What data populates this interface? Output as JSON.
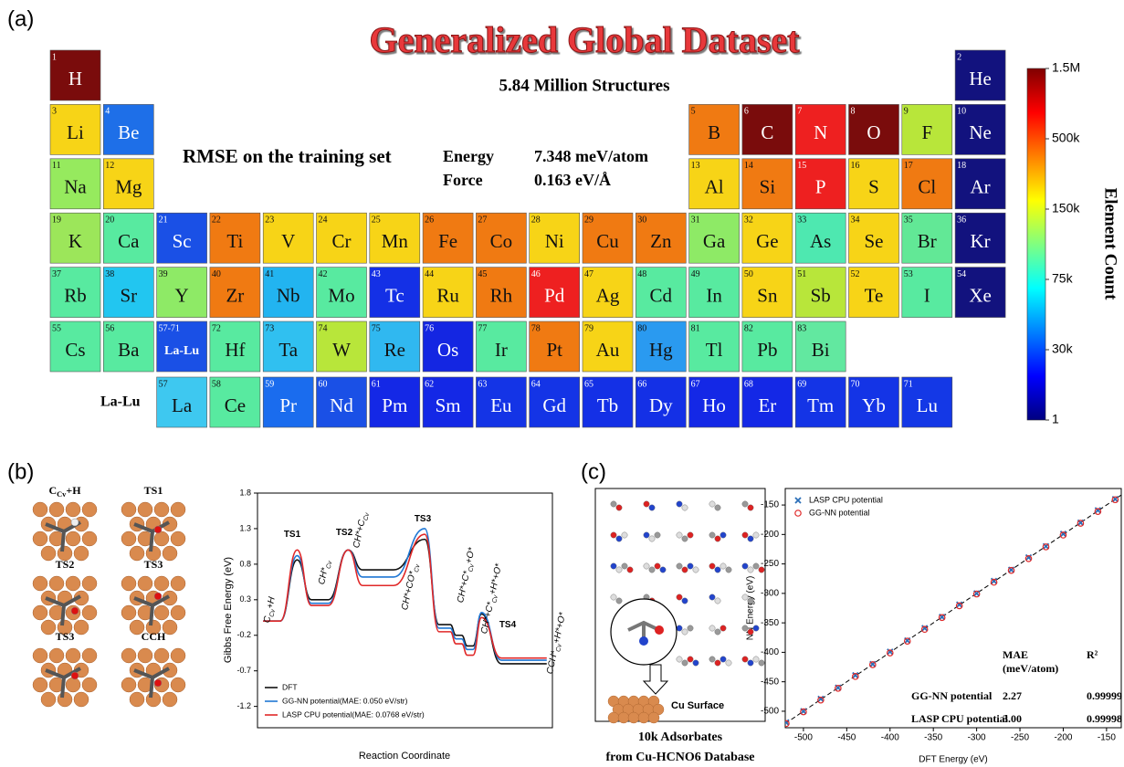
{
  "panel_labels": [
    "(a)",
    "(b)",
    "(c)"
  ],
  "periodic_table": {
    "title": "Generalized Global Dataset",
    "subtitle": "5.84 Million Structures",
    "rmse_label": "RMSE on the training set",
    "energy_label": "Energy",
    "energy_value": "7.348 meV/atom",
    "force_label": "Force",
    "force_value": "0.163 eV/Å",
    "lanthanide_row_label": "La-Lu",
    "lanthanide_cell": {
      "number": "57-71",
      "symbol": "La-Lu",
      "color": "#1a50e6"
    },
    "elements": [
      {
        "number": 1,
        "symbol": "H",
        "color": "#7a0c0c"
      },
      {
        "number": 2,
        "symbol": "He",
        "color": "#12127e"
      },
      {
        "number": 3,
        "symbol": "Li",
        "color": "#f7d417"
      },
      {
        "number": 4,
        "symbol": "Be",
        "color": "#1e6fe8"
      },
      {
        "number": 5,
        "symbol": "B",
        "color": "#f07a12"
      },
      {
        "number": 6,
        "symbol": "C",
        "color": "#7a0c0c"
      },
      {
        "number": 7,
        "symbol": "N",
        "color": "#ee2020"
      },
      {
        "number": 8,
        "symbol": "O",
        "color": "#7a0c0c"
      },
      {
        "number": 9,
        "symbol": "F",
        "color": "#b8e63a"
      },
      {
        "number": 10,
        "symbol": "Ne",
        "color": "#12127e"
      },
      {
        "number": 11,
        "symbol": "Na",
        "color": "#96ea5e"
      },
      {
        "number": 12,
        "symbol": "Mg",
        "color": "#f7d417"
      },
      {
        "number": 13,
        "symbol": "Al",
        "color": "#f7d417"
      },
      {
        "number": 14,
        "symbol": "Si",
        "color": "#f07a12"
      },
      {
        "number": 15,
        "symbol": "P",
        "color": "#ee2020"
      },
      {
        "number": 16,
        "symbol": "S",
        "color": "#f7d417"
      },
      {
        "number": 17,
        "symbol": "Cl",
        "color": "#f07a12"
      },
      {
        "number": 18,
        "symbol": "Ar",
        "color": "#12127e"
      },
      {
        "number": 19,
        "symbol": "K",
        "color": "#9ce65a"
      },
      {
        "number": 20,
        "symbol": "Ca",
        "color": "#58eaa0"
      },
      {
        "number": 21,
        "symbol": "Sc",
        "color": "#1a50e6"
      },
      {
        "number": 22,
        "symbol": "Ti",
        "color": "#f07a12"
      },
      {
        "number": 23,
        "symbol": "V",
        "color": "#f7d417"
      },
      {
        "number": 24,
        "symbol": "Cr",
        "color": "#f7d417"
      },
      {
        "number": 25,
        "symbol": "Mn",
        "color": "#f7d417"
      },
      {
        "number": 26,
        "symbol": "Fe",
        "color": "#f07a12"
      },
      {
        "number": 27,
        "symbol": "Co",
        "color": "#f07a12"
      },
      {
        "number": 28,
        "symbol": "Ni",
        "color": "#f7d417"
      },
      {
        "number": 29,
        "symbol": "Cu",
        "color": "#f07a12"
      },
      {
        "number": 30,
        "symbol": "Zn",
        "color": "#f07a12"
      },
      {
        "number": 31,
        "symbol": "Ga",
        "color": "#8eea66"
      },
      {
        "number": 32,
        "symbol": "Ge",
        "color": "#f7d417"
      },
      {
        "number": 33,
        "symbol": "As",
        "color": "#4ee8b0"
      },
      {
        "number": 34,
        "symbol": "Se",
        "color": "#f7d417"
      },
      {
        "number": 35,
        "symbol": "Br",
        "color": "#62e896"
      },
      {
        "number": 36,
        "symbol": "Kr",
        "color": "#12127e"
      },
      {
        "number": 37,
        "symbol": "Rb",
        "color": "#58eaa0"
      },
      {
        "number": 38,
        "symbol": "Sr",
        "color": "#22c6f0"
      },
      {
        "number": 39,
        "symbol": "Y",
        "color": "#8eea66"
      },
      {
        "number": 40,
        "symbol": "Zr",
        "color": "#f07a12"
      },
      {
        "number": 41,
        "symbol": "Nb",
        "color": "#22b4f0"
      },
      {
        "number": 42,
        "symbol": "Mo",
        "color": "#58eaa0"
      },
      {
        "number": 43,
        "symbol": "Tc",
        "color": "#1430e6"
      },
      {
        "number": 44,
        "symbol": "Ru",
        "color": "#f7d417"
      },
      {
        "number": 45,
        "symbol": "Rh",
        "color": "#f07a12"
      },
      {
        "number": 46,
        "symbol": "Pd",
        "color": "#ee2020"
      },
      {
        "number": 47,
        "symbol": "Ag",
        "color": "#f7d417"
      },
      {
        "number": 48,
        "symbol": "Cd",
        "color": "#58eaa0"
      },
      {
        "number": 49,
        "symbol": "In",
        "color": "#58eaa0"
      },
      {
        "number": 50,
        "symbol": "Sn",
        "color": "#f7d417"
      },
      {
        "number": 51,
        "symbol": "Sb",
        "color": "#b8e63a"
      },
      {
        "number": 52,
        "symbol": "Te",
        "color": "#f7d417"
      },
      {
        "number": 53,
        "symbol": "I",
        "color": "#58eaa0"
      },
      {
        "number": 54,
        "symbol": "Xe",
        "color": "#12127e"
      },
      {
        "number": 55,
        "symbol": "Cs",
        "color": "#58eaa0"
      },
      {
        "number": 56,
        "symbol": "Ba",
        "color": "#58eaa0"
      },
      {
        "number": 57,
        "symbol": "La",
        "color": "#3ec8f0"
      },
      {
        "number": 58,
        "symbol": "Ce",
        "color": "#58eaa0"
      },
      {
        "number": 59,
        "symbol": "Pr",
        "color": "#1a6cee"
      },
      {
        "number": 60,
        "symbol": "Nd",
        "color": "#1a50e6"
      },
      {
        "number": 61,
        "symbol": "Pm",
        "color": "#1428e6"
      },
      {
        "number": 62,
        "symbol": "Sm",
        "color": "#1428e6"
      },
      {
        "number": 63,
        "symbol": "Eu",
        "color": "#1434e6"
      },
      {
        "number": 64,
        "symbol": "Gd",
        "color": "#1434e6"
      },
      {
        "number": 65,
        "symbol": "Tb",
        "color": "#1430e6"
      },
      {
        "number": 66,
        "symbol": "Dy",
        "color": "#1430e6"
      },
      {
        "number": 67,
        "symbol": "Ho",
        "color": "#1428e6"
      },
      {
        "number": 68,
        "symbol": "Er",
        "color": "#1428e6"
      },
      {
        "number": 69,
        "symbol": "Tm",
        "color": "#1434e6"
      },
      {
        "number": 70,
        "symbol": "Yb",
        "color": "#1434e6"
      },
      {
        "number": 71,
        "symbol": "Lu",
        "color": "#1438e6"
      },
      {
        "number": 72,
        "symbol": "Hf",
        "color": "#58eaa0"
      },
      {
        "number": 73,
        "symbol": "Ta",
        "color": "#30c0f0"
      },
      {
        "number": 74,
        "symbol": "W",
        "color": "#b8e63a"
      },
      {
        "number": 75,
        "symbol": "Re",
        "color": "#30b8f0"
      },
      {
        "number": 76,
        "symbol": "Os",
        "color": "#1426e2"
      },
      {
        "number": 77,
        "symbol": "Ir",
        "color": "#58eaa0"
      },
      {
        "number": 78,
        "symbol": "Pt",
        "color": "#f07a12"
      },
      {
        "number": 79,
        "symbol": "Au",
        "color": "#f7d417"
      },
      {
        "number": 80,
        "symbol": "Hg",
        "color": "#2a9af0"
      },
      {
        "number": 81,
        "symbol": "Tl",
        "color": "#58eaa0"
      },
      {
        "number": 82,
        "symbol": "Pb",
        "color": "#58eaa0"
      },
      {
        "number": 83,
        "symbol": "Bi",
        "color": "#62e8a0"
      }
    ],
    "colorbar": {
      "label": "Element Count",
      "colors": [
        "#800000",
        "#ff0000",
        "#ff8000",
        "#ffff00",
        "#80ff80",
        "#00ffff",
        "#0080ff",
        "#0000ff",
        "#000080"
      ],
      "ticks": [
        {
          "value": 1500000,
          "label": "1.5M"
        },
        {
          "value": 500000,
          "label": "500k"
        },
        {
          "value": 150000,
          "label": "150k"
        },
        {
          "value": 75000,
          "label": "75k"
        },
        {
          "value": 30000,
          "label": "30k"
        },
        1
      ]
    }
  },
  "structures": {
    "labels": [
      [
        "C",
        "Cv",
        "+H"
      ],
      [
        "TS1"
      ],
      [
        "TS2"
      ],
      [
        "TS3"
      ],
      [
        "TS3"
      ],
      [
        "CCH"
      ]
    ]
  },
  "chart_data": [
    {
      "type": "line",
      "xlabel": "Reaction Coordinate",
      "ylabel": "Gibbs Free Energy (eV)",
      "x": [
        0,
        6,
        12,
        17,
        23,
        30,
        35,
        46,
        57,
        62,
        66,
        68,
        70,
        72,
        74,
        77,
        84,
        100
      ],
      "xlim": [
        -2,
        102
      ],
      "ylim": [
        -1.5,
        1.8
      ],
      "yticks": [
        -1.2,
        -0.7,
        -0.2,
        0.3,
        0.8,
        1.3,
        1.8
      ],
      "legend": "lower left",
      "annotations": [
        [
          "TS1"
        ],
        [
          "TS2"
        ],
        [
          "TS3"
        ],
        [
          "TS4"
        ],
        [
          "C",
          "Cv",
          "+H"
        ],
        [
          "CH*",
          "Cv"
        ],
        [
          "CH*+C",
          "Cv"
        ],
        [
          "CH*+CO*",
          "Cv"
        ],
        [
          "CH*+C*",
          "Cv",
          "+O*"
        ],
        [
          "CH*+C*",
          "Cv",
          "+H*+O*"
        ],
        [
          "CCH*",
          "Cv",
          "+H*+O*"
        ]
      ],
      "series": [
        {
          "name": "DFT",
          "color": "#111111",
          "values": [
            0,
            0,
            0.86,
            0.3,
            0.3,
            1.0,
            0.72,
            0.72,
            1.15,
            -0.05,
            -0.05,
            -0.2,
            -0.2,
            -0.35,
            -0.35,
            0.1,
            -0.6,
            -0.6
          ]
        },
        {
          "name": "GG-NN potential(MAE: 0.050 eV/str)",
          "color": "#1f77d4",
          "values": [
            0,
            0,
            0.92,
            0.25,
            0.25,
            1.0,
            0.62,
            0.62,
            1.3,
            -0.1,
            -0.1,
            -0.25,
            -0.25,
            -0.4,
            -0.4,
            0.12,
            -0.55,
            -0.55
          ]
        },
        {
          "name": "LASP CPU potential(MAE: 0.0768 eV/str)",
          "color": "#e02828",
          "values": [
            0,
            0,
            1.0,
            0.22,
            0.22,
            1.0,
            0.5,
            0.5,
            1.22,
            -0.15,
            -0.15,
            -0.32,
            -0.32,
            -0.48,
            -0.48,
            0.05,
            -0.52,
            -0.52
          ]
        }
      ]
    },
    {
      "type": "scatter",
      "xlabel": "DFT Energy (eV)",
      "ylabel": "NN Energy (eV)",
      "xlim": [
        -521,
        -133
      ],
      "ylim": [
        -528,
        -122
      ],
      "xticks": [
        -500,
        -450,
        -400,
        -350,
        -300,
        -250,
        -200,
        -150
      ],
      "yticks": [
        -500,
        -450,
        -400,
        -350,
        -300,
        -250,
        -200,
        -150
      ],
      "legend": "upper left",
      "series": [
        {
          "name": "LASP CPU potential",
          "color": "#2c6fb8",
          "marker": "x",
          "x": [
            -520,
            -500,
            -480,
            -460,
            -440,
            -420,
            -400,
            -380,
            -360,
            -340,
            -320,
            -300,
            -280,
            -260,
            -240,
            -220,
            -200,
            -180,
            -160,
            -140
          ],
          "values": [
            -519,
            -500,
            -479,
            -460,
            -439,
            -420,
            -399,
            -380,
            -359,
            -340,
            -319,
            -300,
            -279,
            -260,
            -239,
            -220,
            -199,
            -180,
            -159,
            -140
          ]
        },
        {
          "name": "GG-NN potential",
          "color": "#e02828",
          "marker": "circle",
          "x": [
            -520,
            -500,
            -480,
            -460,
            -440,
            -420,
            -400,
            -380,
            -360,
            -340,
            -320,
            -300,
            -280,
            -260,
            -240,
            -220,
            -200,
            -180,
            -160,
            -140
          ],
          "values": [
            -521,
            -501,
            -481,
            -461,
            -441,
            -421,
            -401,
            -381,
            -361,
            -341,
            -321,
            -301,
            -281,
            -261,
            -241,
            -221,
            -201,
            -181,
            -161,
            -141
          ]
        }
      ],
      "table": {
        "header": [
          [
            "MAE",
            "(meV/atom)"
          ],
          "R²"
        ],
        "rows": [
          [
            "GG-NN potential",
            "2.27",
            "0.99999"
          ],
          [
            "LASP CPU potential",
            "3.00",
            "0.99998"
          ]
        ]
      }
    }
  ],
  "adsorbates": {
    "surface_label": "Cu Surface",
    "caption": [
      "10k Adsorbates",
      "from Cu-HCNO6 Database"
    ]
  }
}
